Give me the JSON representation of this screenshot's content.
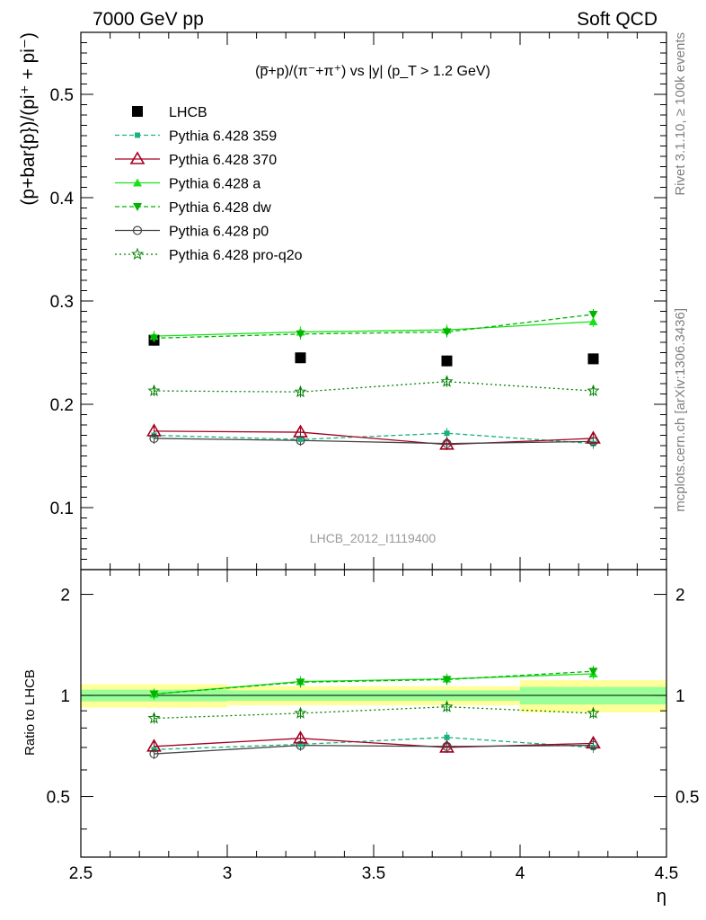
{
  "header": {
    "left_label": "7000 GeV pp",
    "right_label": "Soft QCD"
  },
  "side_labels": {
    "rivet": "Rivet 3.1.10, ≥ 100k events",
    "mcplots": "mcplots.cern.ch [arXiv:1306.3436]"
  },
  "chart_data": [
    {
      "type": "scatter",
      "panel": "main",
      "title": "(p̅+p)/(π⁻+π⁺) vs |y| (p_T > 1.2 GeV)",
      "ylabel": "(p+bar{p})/(pi⁺ + pi⁻)",
      "xlabel": "",
      "watermark": "LHCB_2012_I1119400",
      "xlim": [
        2.5,
        4.5
      ],
      "ylim": [
        0.04,
        0.56
      ],
      "yticks": [
        0.1,
        0.2,
        0.3,
        0.4,
        0.5
      ],
      "ytick_labels": [
        "0.1",
        "0.2",
        "0.3",
        "0.4",
        "0.5"
      ],
      "grid": false,
      "legend_position": "top-left",
      "x": [
        2.75,
        3.25,
        3.75,
        4.25
      ],
      "series": [
        {
          "name": "LHCB",
          "values": [
            0.262,
            0.245,
            0.242,
            0.244
          ],
          "color": "#000000",
          "marker": "square-filled",
          "line": "none"
        },
        {
          "name": "Pythia 6.428 359",
          "values": [
            0.17,
            0.166,
            0.172,
            0.162
          ],
          "color": "#1ab27f",
          "marker": "square-small",
          "line": "dashed"
        },
        {
          "name": "Pythia 6.428 370",
          "values": [
            0.174,
            0.173,
            0.161,
            0.167
          ],
          "color": "#a50021",
          "marker": "triangle-open",
          "line": "solid"
        },
        {
          "name": "Pythia 6.428 a",
          "values": [
            0.266,
            0.27,
            0.272,
            0.28
          ],
          "color": "#19e119",
          "marker": "triangle-filled",
          "line": "solid"
        },
        {
          "name": "Pythia 6.428 dw",
          "values": [
            0.264,
            0.268,
            0.27,
            0.287
          ],
          "color": "#00b400",
          "marker": "triangle-down-filled",
          "line": "dashed"
        },
        {
          "name": "Pythia 6.428 p0",
          "values": [
            0.167,
            0.165,
            0.162,
            0.164
          ],
          "color": "#444444",
          "marker": "circle-open",
          "line": "solid"
        },
        {
          "name": "Pythia 6.428 pro-q2o",
          "values": [
            0.213,
            0.212,
            0.222,
            0.213
          ],
          "color": "#008000",
          "marker": "star-open",
          "line": "dotted"
        }
      ]
    },
    {
      "type": "line",
      "panel": "ratio",
      "ylabel": "Ratio to LHCB",
      "xlabel": "η",
      "xlim": [
        2.5,
        4.5
      ],
      "ylim": [
        0.33,
        2.37
      ],
      "yticks": [
        0.5,
        1,
        2
      ],
      "ytick_labels": [
        "0.5",
        "1",
        "2"
      ],
      "xticks": [
        2.5,
        3,
        3.5,
        4,
        4.5
      ],
      "xtick_labels": [
        "2.5",
        "3",
        "3.5",
        "4",
        "4.5"
      ],
      "reference_line": 1,
      "uncertainty_bands": {
        "bins": [
          [
            2.5,
            3.0
          ],
          [
            3.0,
            3.5
          ],
          [
            3.5,
            4.0
          ],
          [
            4.0,
            4.5
          ]
        ],
        "stat_low": [
          0.96,
          0.965,
          0.965,
          0.94
        ],
        "stat_high": [
          1.04,
          1.035,
          1.035,
          1.06
        ],
        "total_low": [
          0.92,
          0.935,
          0.935,
          0.89
        ],
        "total_high": [
          1.08,
          1.065,
          1.065,
          1.11
        ],
        "stat_color": "#99ff99",
        "total_color": "#ffff99"
      },
      "x": [
        2.75,
        3.25,
        3.75,
        4.25
      ],
      "series": [
        {
          "name": "Pythia 6.428 359",
          "values": [
            0.69,
            0.715,
            0.75,
            0.7
          ],
          "color": "#1ab27f",
          "marker": "square-small",
          "line": "dashed"
        },
        {
          "name": "Pythia 6.428 370",
          "values": [
            0.705,
            0.745,
            0.7,
            0.72
          ],
          "color": "#a50021",
          "marker": "triangle-open",
          "line": "solid"
        },
        {
          "name": "Pythia 6.428 a",
          "values": [
            1.01,
            1.1,
            1.12,
            1.16
          ],
          "color": "#19e119",
          "marker": "triangle-filled",
          "line": "solid"
        },
        {
          "name": "Pythia 6.428 dw",
          "values": [
            1.01,
            1.095,
            1.115,
            1.18
          ],
          "color": "#00b400",
          "marker": "triangle-down-filled",
          "line": "dashed"
        },
        {
          "name": "Pythia 6.428 p0",
          "values": [
            0.67,
            0.71,
            0.705,
            0.71
          ],
          "color": "#444444",
          "marker": "circle-open",
          "line": "solid"
        },
        {
          "name": "Pythia 6.428 pro-q2o",
          "values": [
            0.855,
            0.885,
            0.925,
            0.885
          ],
          "color": "#008000",
          "marker": "star-open",
          "line": "dotted"
        }
      ]
    }
  ]
}
